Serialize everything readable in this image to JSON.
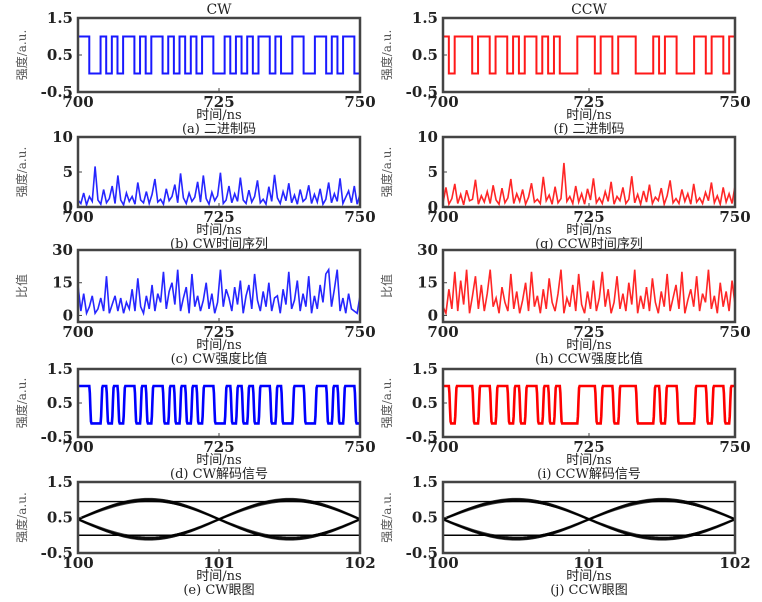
{
  "chart_data": [
    {
      "id": "a",
      "type": "line",
      "title": "CW",
      "caption": "(a) 二进制码",
      "xlabel": "时间/ns",
      "ylabel": "强度/a.u.",
      "xlim": [
        700,
        750
      ],
      "ylim": [
        -0.5,
        1.5
      ],
      "xticks": [
        "700",
        "725",
        "750"
      ],
      "yticks": [
        "1.5",
        "0.5",
        "-0.5"
      ],
      "ytick_values": [
        1.5,
        0.5,
        -0.5
      ],
      "color": "#0000ff",
      "kind": "binary",
      "bit_ns": 1,
      "high": 1.0,
      "low": 0.0,
      "bits": "11001010110101101010101100101010110100110011010110"
    },
    {
      "id": "f",
      "type": "line",
      "title": "CCW",
      "caption": "(f) 二进制码",
      "xlabel": "时间/ns",
      "ylabel": "强度/a.u.",
      "xlim": [
        700,
        750
      ],
      "ylim": [
        -0.5,
        1.5
      ],
      "xticks": [
        "700",
        "725",
        "750"
      ],
      "yticks": [
        "1.5",
        "0.5",
        "-0.5"
      ],
      "ytick_values": [
        1.5,
        0.5,
        -0.5
      ],
      "color": "#ff0000",
      "kind": "binary",
      "bit_ns": 1,
      "high": 1.0,
      "low": 0.0,
      "bits": "10111011011010110101000111011011100010110001101101"
    },
    {
      "id": "b",
      "type": "line",
      "caption": "(b) CW时间序列",
      "xlabel": "时间/ns",
      "ylabel": "强度/a.u.",
      "xlim": [
        700,
        750
      ],
      "ylim": [
        0,
        10
      ],
      "xticks": [
        "700",
        "725",
        "750"
      ],
      "yticks": [
        "10",
        "5",
        "0"
      ],
      "ytick_values": [
        10,
        5,
        0
      ],
      "color": "#0000ff",
      "kind": "series",
      "values": [
        1,
        0.5,
        2,
        0.3,
        1.5,
        0.8,
        5.8,
        1,
        0.4,
        2.5,
        0.6,
        1.2,
        3,
        0.5,
        4.5,
        1,
        0.3,
        2,
        0.8,
        1.5,
        0.4,
        3.5,
        1,
        0.6,
        2.2,
        0.5,
        1.8,
        4,
        0.7,
        1.1,
        0.4,
        2.6,
        0.9,
        1.5,
        3.2,
        0.6,
        4.8,
        1.3,
        0.5,
        2,
        0.8,
        1.4,
        3.6,
        0.7,
        4.5,
        1.2,
        0.4,
        2.1,
        0.9,
        1.6,
        4.9,
        0.5,
        1,
        3,
        0.6,
        1.9,
        0.8,
        4.2,
        1,
        0.5,
        2.4,
        0.7,
        1.5,
        3.8,
        0.6,
        1.1,
        0.4,
        2.9,
        0.8,
        4.6,
        1.3,
        0.5,
        2.2,
        0.9,
        3.4,
        0.6,
        1.7,
        0.4,
        2.5,
        0.8,
        1.2,
        3.1,
        0.5,
        1.8,
        0.7,
        2.6,
        0.4,
        1.1,
        3.5,
        0.6,
        1.9,
        0.8,
        4.1,
        0.5,
        1.4,
        2.3,
        0.6,
        3,
        0.4,
        1.8
      ]
    },
    {
      "id": "g",
      "type": "line",
      "caption": "(g) CCW时间序列",
      "xlabel": "时间/ns",
      "ylabel": "强度/a.u.",
      "xlim": [
        700,
        750
      ],
      "ylim": [
        0,
        10
      ],
      "xticks": [
        "700",
        "725",
        "750"
      ],
      "yticks": [
        "10",
        "5",
        "0"
      ],
      "ytick_values": [
        10,
        5,
        0
      ],
      "color": "#ff0000",
      "kind": "series",
      "values": [
        0.6,
        2.8,
        0.4,
        1.2,
        3.3,
        0.5,
        1.8,
        0.3,
        2.4,
        0.9,
        1.1,
        3.9,
        0.4,
        1.6,
        0.7,
        2.2,
        0.5,
        3.1,
        1,
        0.4,
        2.7,
        0.6,
        1.3,
        4,
        0.5,
        1.9,
        0.8,
        2.5,
        0.4,
        1.4,
        3.4,
        0.7,
        1.1,
        0.5,
        4.3,
        0.9,
        1.7,
        0.4,
        2.9,
        0.6,
        1.2,
        6.3,
        0.8,
        1.5,
        0.5,
        3,
        0.7,
        1.9,
        0.4,
        2.6,
        1,
        4.1,
        0.6,
        1.3,
        0.5,
        2.2,
        0.8,
        3.6,
        0.4,
        1.5,
        0.9,
        2.8,
        0.5,
        1.1,
        4.4,
        0.6,
        1.8,
        0.4,
        2.3,
        0.7,
        3.2,
        0.5,
        1.4,
        0.9,
        2.7,
        0.4,
        1.6,
        3.8,
        0.6,
        1.2,
        0.5,
        2.5,
        0.8,
        1.9,
        0.4,
        3.3,
        0.7,
        1.3,
        0.5,
        2.1,
        0.9,
        3.5,
        0.6,
        1.6,
        0.4,
        2.8,
        0.7,
        1.9,
        0.5,
        3
      ]
    },
    {
      "id": "c",
      "type": "line",
      "caption": "(c) CW强度比值",
      "xlabel": "时间/ns",
      "ylabel": "比值",
      "xlim": [
        700,
        750
      ],
      "ylim": [
        -3,
        30
      ],
      "xticks": [
        "700",
        "725",
        "750"
      ],
      "yticks": [
        "30",
        "15",
        "0"
      ],
      "ytick_values": [
        30,
        15,
        0
      ],
      "color": "#0000ff",
      "kind": "series",
      "values": [
        14,
        2,
        10,
        1,
        4,
        9,
        1,
        3,
        8,
        2,
        18,
        1,
        5,
        9,
        2,
        8,
        1,
        6,
        3,
        12,
        2,
        17,
        4,
        1,
        9,
        3,
        14,
        2,
        10,
        6,
        20,
        3,
        11,
        15,
        5,
        21,
        2,
        8,
        13,
        1,
        19,
        4,
        9,
        2,
        7,
        15,
        3,
        10,
        1,
        6,
        21,
        4,
        12,
        8,
        2,
        13,
        5,
        16,
        1,
        9,
        14,
        3,
        19,
        7,
        2,
        11,
        4,
        15,
        2,
        8,
        9,
        1,
        12,
        5,
        20,
        3,
        7,
        16,
        2,
        10,
        4,
        18,
        1,
        9,
        3,
        14,
        6,
        19,
        21,
        4,
        12,
        21,
        2,
        8,
        1,
        10,
        3,
        2,
        1,
        9
      ]
    },
    {
      "id": "h",
      "type": "line",
      "caption": "(h) CCW强度比值",
      "xlabel": "时间/ns",
      "ylabel": "比值",
      "xlim": [
        700,
        750
      ],
      "ylim": [
        -3,
        30
      ],
      "xticks": [
        "700",
        "725",
        "750"
      ],
      "yticks": [
        "30",
        "15",
        "0"
      ],
      "ytick_values": [
        30,
        15,
        0
      ],
      "color": "#ff0000",
      "kind": "series",
      "values": [
        4,
        1,
        12,
        3,
        20,
        2,
        16,
        5,
        21,
        1,
        9,
        18,
        3,
        14,
        2,
        10,
        21,
        4,
        8,
        1,
        13,
        6,
        2,
        19,
        3,
        11,
        1,
        7,
        15,
        2,
        20,
        4,
        9,
        1,
        12,
        3,
        17,
        6,
        2,
        10,
        21,
        1,
        8,
        4,
        14,
        2,
        19,
        5,
        1,
        11,
        3,
        16,
        2,
        8,
        20,
        4,
        12,
        1,
        6,
        18,
        3,
        10,
        2,
        15,
        5,
        21,
        1,
        9,
        3,
        13,
        2,
        17,
        6,
        1,
        11,
        4,
        19,
        2,
        8,
        14,
        3,
        20,
        1,
        7,
        12,
        4,
        18,
        2,
        10,
        6,
        21,
        3,
        9,
        1,
        15,
        4,
        11,
        2,
        16,
        5
      ]
    },
    {
      "id": "d",
      "type": "line",
      "caption": "(d) CW解码信号",
      "xlabel": "时间/ns",
      "ylabel": "强度/a.u.",
      "xlim": [
        700,
        750
      ],
      "ylim": [
        -0.5,
        1.5
      ],
      "xticks": [
        "700",
        "725",
        "750"
      ],
      "yticks": [
        "1.5",
        "0.5",
        "-0.5"
      ],
      "ytick_values": [
        1.5,
        0.5,
        -0.5
      ],
      "color": "#0000ff",
      "kind": "decoded",
      "bit_ns": 1,
      "high": 1.0,
      "low": -0.1,
      "bits": "11001010110101101010101100101010110100110011010110"
    },
    {
      "id": "i",
      "type": "line",
      "caption": "(i) CCW解码信号",
      "xlabel": "时间/ns",
      "ylabel": "强度/a.u.",
      "xlim": [
        700,
        750
      ],
      "ylim": [
        -0.5,
        1.5
      ],
      "xticks": [
        "700",
        "725",
        "750"
      ],
      "yticks": [
        "1.5",
        "0.5",
        "-0.5"
      ],
      "ytick_values": [
        1.5,
        0.5,
        -0.5
      ],
      "color": "#ff0000",
      "kind": "decoded",
      "bit_ns": 1,
      "high": 1.0,
      "low": -0.1,
      "bits": "10111011011010110101000111011011100010110001101101"
    },
    {
      "id": "e",
      "type": "line",
      "caption": "(e) CW眼图",
      "xlabel": "时间/ns",
      "ylabel": "强度/a.u.",
      "xlim": [
        100,
        102
      ],
      "ylim": [
        -0.5,
        1.5
      ],
      "xticks": [
        "100",
        "101",
        "102"
      ],
      "yticks": [
        "1.5",
        "0.5",
        "-0.5"
      ],
      "ytick_values": [
        1.5,
        0.5,
        -0.5
      ],
      "color": "#000000",
      "kind": "eye",
      "high": 1.0,
      "low": -0.1,
      "cross": 0.45,
      "levels": [
        0.95,
        0.0
      ],
      "traces": 8
    },
    {
      "id": "j",
      "type": "line",
      "caption": "(j) CCW眼图",
      "xlabel": "时间/ns",
      "ylabel": "强度/a.u.",
      "xlim": [
        100,
        102
      ],
      "ylim": [
        -0.5,
        1.5
      ],
      "xticks": [
        "100",
        "101",
        "102"
      ],
      "yticks": [
        "1.5",
        "0.5",
        "-0.5"
      ],
      "ytick_values": [
        1.5,
        0.5,
        -0.5
      ],
      "color": "#000000",
      "kind": "eye",
      "high": 1.0,
      "low": -0.1,
      "cross": 0.45,
      "levels": [
        0.95,
        0.0
      ],
      "traces": 8
    }
  ]
}
